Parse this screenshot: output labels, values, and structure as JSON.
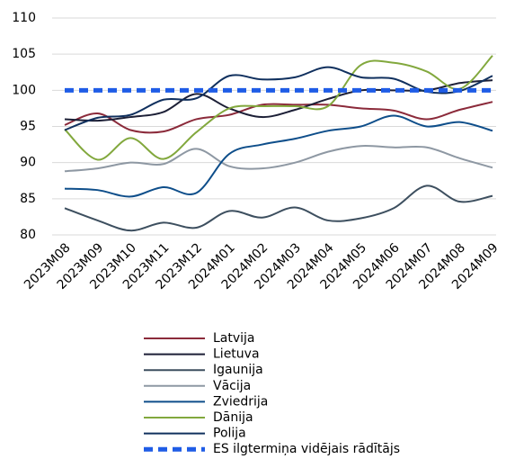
{
  "chart_data": {
    "type": "line",
    "categories": [
      "2023M08",
      "2023M09",
      "2023M10",
      "2023M11",
      "2023M12",
      "2024M01",
      "2024M02",
      "2024M03",
      "2024M04",
      "2024M05",
      "2024M06",
      "2024M07",
      "2024M08",
      "2024M09"
    ],
    "ylim": [
      80,
      110
    ],
    "yticks": [
      80,
      85,
      90,
      95,
      100,
      105,
      110
    ],
    "grid": true,
    "series": [
      {
        "name": "Latvija",
        "color": "#8b2a3a",
        "values": [
          95.2,
          96.8,
          94.5,
          94.3,
          96.0,
          96.6,
          98.0,
          98.0,
          98.0,
          97.5,
          97.2,
          96.0,
          97.3,
          98.4
        ]
      },
      {
        "name": "Lietuva",
        "color": "#1c1f36",
        "values": [
          96.0,
          95.8,
          96.3,
          97.0,
          99.5,
          97.5,
          96.3,
          97.3,
          98.8,
          100.0,
          100.0,
          100.0,
          101.0,
          101.4
        ]
      },
      {
        "name": "Igaunija",
        "color": "#3d4f5f",
        "values": [
          83.7,
          82.0,
          80.6,
          81.7,
          81.0,
          83.3,
          82.4,
          83.8,
          82.0,
          82.3,
          83.7,
          86.8,
          84.6,
          85.4
        ]
      },
      {
        "name": "Vācija",
        "color": "#8e98a3",
        "values": [
          88.8,
          89.2,
          90.0,
          89.8,
          91.9,
          89.5,
          89.2,
          90.0,
          91.5,
          92.3,
          92.1,
          92.1,
          90.6,
          89.3
        ]
      },
      {
        "name": "Zviedrija",
        "color": "#0e4e8a",
        "values": [
          86.4,
          86.2,
          85.3,
          86.6,
          85.8,
          91.2,
          92.5,
          93.3,
          94.4,
          95.0,
          96.5,
          95.0,
          95.6,
          94.4
        ]
      },
      {
        "name": "Dānija",
        "color": "#82a83d",
        "values": [
          94.6,
          90.4,
          93.4,
          90.5,
          94.2,
          97.5,
          97.8,
          97.8,
          97.8,
          103.5,
          103.8,
          102.6,
          100.2,
          104.8
        ]
      },
      {
        "name": "Polija",
        "color": "#10305e",
        "values": [
          94.5,
          96.2,
          96.6,
          98.7,
          98.9,
          102.0,
          101.5,
          101.8,
          103.2,
          101.8,
          101.6,
          99.8,
          99.9,
          102.0
        ]
      },
      {
        "name": "ES ilgtermiņa vidējais rādītājs",
        "color": "#1f5ce6",
        "dashed": true,
        "values": [
          100,
          100,
          100,
          100,
          100,
          100,
          100,
          100,
          100,
          100,
          100,
          100,
          100,
          100
        ]
      }
    ]
  }
}
